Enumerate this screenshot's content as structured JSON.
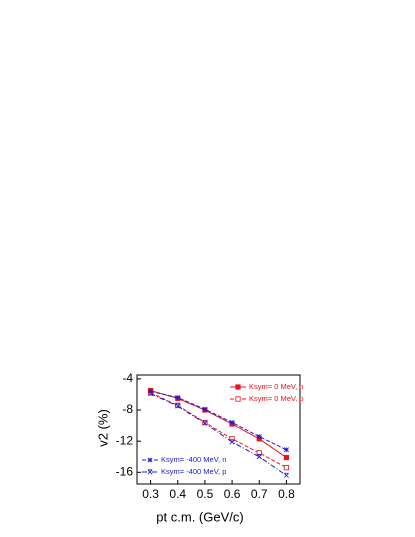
{
  "chart_data": {
    "type": "line",
    "x_label": "pt c.m. (GeV/c)",
    "y_label": "v2 (%)",
    "x": [
      0.3,
      0.4,
      0.5,
      0.6,
      0.7,
      0.8
    ],
    "xlim": [
      0.25,
      0.85
    ],
    "xticks": [
      0.3,
      0.4,
      0.5,
      0.6,
      0.7,
      0.8
    ],
    "ylim": [
      -17.5,
      -3.5
    ],
    "yticks": [
      -4,
      -8,
      -12,
      -16
    ],
    "series": [
      {
        "name": "Ksym= 0 MeV, n",
        "color": "#e8141b",
        "dash": "none",
        "marker": "filled-square",
        "legend": "upper right",
        "values": [
          -5.5,
          -6.5,
          -8.0,
          -9.8,
          -11.7,
          -14.1
        ]
      },
      {
        "name": "Ksym= 0 MeV, p",
        "color": "#e8141b",
        "dash": "4 2",
        "marker": "open-square",
        "legend": "upper right",
        "values": [
          -5.8,
          -7.4,
          -9.6,
          -11.7,
          -13.5,
          -15.4
        ]
      },
      {
        "name": "Ksym= -400 MeV, n",
        "color": "#1a1ad6",
        "dash": "4 2",
        "marker": "star",
        "legend": "lower left",
        "values": [
          -5.6,
          -6.4,
          -7.9,
          -9.6,
          -11.4,
          -13.1
        ]
      },
      {
        "name": "Ksym= -400 MeV, p",
        "color": "#1a1ad6",
        "dash": "5 2 1 2",
        "marker": "cross",
        "legend": "lower left",
        "values": [
          -5.9,
          -7.5,
          -9.7,
          -12.1,
          -14.0,
          -16.4
        ]
      }
    ]
  }
}
